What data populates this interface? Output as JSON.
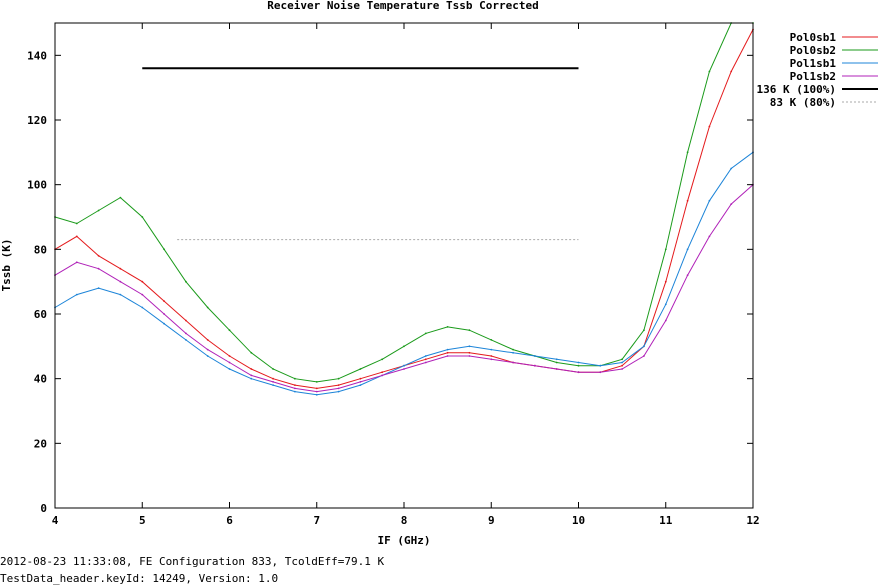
{
  "chart_data": {
    "type": "line",
    "title": "Receiver Noise Temperature Tssb Corrected",
    "xlabel": "IF (GHz)",
    "ylabel": "Tssb (K)",
    "xlim": [
      4,
      12
    ],
    "ylim": [
      0,
      150
    ],
    "xticks": [
      4,
      5,
      6,
      7,
      8,
      9,
      10,
      11,
      12
    ],
    "yticks": [
      0,
      20,
      40,
      60,
      80,
      100,
      120,
      140
    ],
    "grid": false,
    "legend_position": "right",
    "x": [
      4.0,
      4.25,
      4.5,
      4.75,
      5.0,
      5.25,
      5.5,
      5.75,
      6.0,
      6.25,
      6.5,
      6.75,
      7.0,
      7.25,
      7.5,
      7.75,
      8.0,
      8.25,
      8.5,
      8.75,
      9.0,
      9.25,
      9.5,
      9.75,
      10.0,
      10.25,
      10.5,
      10.75,
      11.0,
      11.25,
      11.5,
      11.75,
      12.0
    ],
    "series": [
      {
        "name": "Pol0sb1",
        "color": "#e41a1c",
        "values": [
          80,
          84,
          78,
          74,
          70,
          64,
          58,
          52,
          47,
          43,
          40,
          38,
          37,
          38,
          40,
          42,
          44,
          46,
          48,
          48,
          47,
          45,
          44,
          43,
          42,
          42,
          44,
          50,
          70,
          95,
          118,
          135,
          148
        ]
      },
      {
        "name": "Pol0sb2",
        "color": "#1a9a1a",
        "values": [
          90,
          88,
          92,
          96,
          90,
          80,
          70,
          62,
          55,
          48,
          43,
          40,
          39,
          40,
          43,
          46,
          50,
          54,
          56,
          55,
          52,
          49,
          47,
          45,
          44,
          44,
          46,
          55,
          80,
          110,
          135,
          150,
          150
        ]
      },
      {
        "name": "Pol1sb1",
        "color": "#1c84d8",
        "values": [
          62,
          66,
          68,
          66,
          62,
          57,
          52,
          47,
          43,
          40,
          38,
          36,
          35,
          36,
          38,
          41,
          44,
          47,
          49,
          50,
          49,
          48,
          47,
          46,
          45,
          44,
          45,
          50,
          63,
          80,
          95,
          105,
          110
        ]
      },
      {
        "name": "Pol1sb2",
        "color": "#b021b8",
        "values": [
          72,
          76,
          74,
          70,
          66,
          60,
          54,
          49,
          45,
          41,
          39,
          37,
          36,
          37,
          39,
          41,
          43,
          45,
          47,
          47,
          46,
          45,
          44,
          43,
          42,
          42,
          43,
          47,
          58,
          72,
          84,
          94,
          100
        ]
      }
    ],
    "reference_lines": [
      {
        "name": "136 K (100%)",
        "value": 136,
        "x_range": [
          5,
          10
        ],
        "color": "#000000",
        "style": "solid"
      },
      {
        "name": "83 K (80%)",
        "value": 83,
        "x_range": [
          5.4,
          10
        ],
        "color": "#aaaaaa",
        "style": "dotted"
      }
    ]
  },
  "footer": {
    "line1": "2012-08-23 11:33:08, FE Configuration 833, TcoldEff=79.1 K",
    "line2": "TestData_header.keyId: 14249, Version: 1.0"
  }
}
